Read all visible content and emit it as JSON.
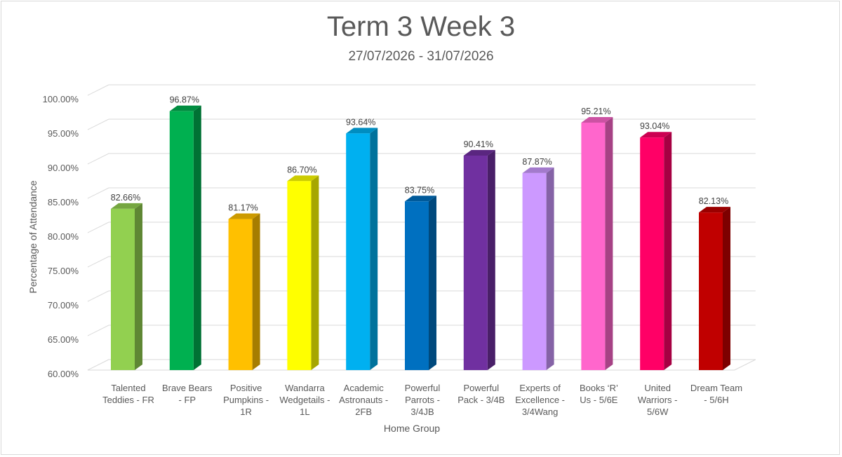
{
  "chart_data": {
    "type": "bar",
    "title": "Term 3 Week 3",
    "subtitle": "27/07/2026 - 31/07/2026",
    "xlabel": "Home Group",
    "ylabel": "Percentage of Attendance",
    "ylim": [
      60,
      100
    ],
    "yticks": [
      "60.00%",
      "65.00%",
      "70.00%",
      "75.00%",
      "80.00%",
      "85.00%",
      "90.00%",
      "95.00%",
      "100.00%"
    ],
    "grid": true,
    "categories": [
      [
        "Talented",
        "Teddies - FR"
      ],
      [
        "Brave Bears",
        "- FP"
      ],
      [
        "Positive",
        "Pumpkins -",
        "1R"
      ],
      [
        "Wandarra",
        "Wedgetails -",
        "1L"
      ],
      [
        "Academic",
        "Astronauts -",
        "2FB"
      ],
      [
        "Powerful",
        "Parrots -",
        "3/4JB"
      ],
      [
        "Powerful",
        "Pack - 3/4B"
      ],
      [
        "Experts of",
        "Excellence -",
        "3/4Wang"
      ],
      [
        "Books ‘R’",
        "Us - 5/6E"
      ],
      [
        "United",
        "Warriors -",
        "5/6W"
      ],
      [
        "Dream Team",
        "- 5/6H"
      ]
    ],
    "values": [
      82.66,
      96.87,
      81.17,
      86.7,
      93.64,
      83.75,
      90.41,
      87.87,
      95.21,
      93.04,
      82.13
    ],
    "data_labels": [
      "82.66%",
      "96.87%",
      "81.17%",
      "86.70%",
      "93.64%",
      "83.75%",
      "90.41%",
      "87.87%",
      "95.21%",
      "93.04%",
      "82.13%"
    ],
    "colors": [
      "#92d050",
      "#00b050",
      "#ffc000",
      "#ffff00",
      "#00b0f0",
      "#0070c0",
      "#7030a0",
      "#cc99ff",
      "#ff66cc",
      "#ff0066",
      "#c00000"
    ]
  }
}
